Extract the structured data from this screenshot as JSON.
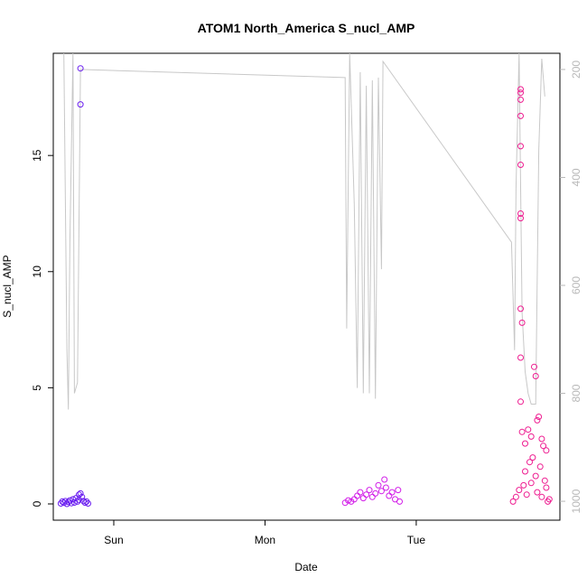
{
  "chart_data": {
    "type": "scatter",
    "title": "ATOM1 North_America S_nucl_AMP",
    "xlabel": "Date",
    "ylabel": "S_nucl_AMP",
    "x_ticks": [
      "Sun",
      "Mon",
      "Tue"
    ],
    "xlim": [
      -0.4,
      2.95
    ],
    "ylim": [
      -0.7,
      19.4
    ],
    "y_ticks": [
      0,
      5,
      10,
      15
    ],
    "y2_ticks": [
      200,
      400,
      600,
      800,
      1000
    ],
    "y2lim": [
      1035,
      170
    ],
    "grid": false,
    "legend": "none",
    "colors": {
      "axis": "#000000",
      "secondary_axis": "#b8b8b8",
      "line": "#c8c8c8",
      "points_early": "#6a1ef0",
      "points_mid": "#d21ee8",
      "points_late": "#ee1c90"
    },
    "series": [
      {
        "type": "scatter",
        "points": [
          {
            "x": -0.35,
            "y": 0.02
          },
          {
            "x": -0.34,
            "y": 0.1
          },
          {
            "x": -0.33,
            "y": 0.05
          },
          {
            "x": -0.32,
            "y": 0.12
          },
          {
            "x": -0.31,
            "y": 0.0
          },
          {
            "x": -0.3,
            "y": 0.08
          },
          {
            "x": -0.29,
            "y": 0.15
          },
          {
            "x": -0.28,
            "y": 0.03
          },
          {
            "x": -0.27,
            "y": 0.2
          },
          {
            "x": -0.26,
            "y": 0.06
          },
          {
            "x": -0.25,
            "y": 0.25
          },
          {
            "x": -0.24,
            "y": 0.1
          },
          {
            "x": -0.23,
            "y": 0.18
          },
          {
            "x": -0.22,
            "y": 0.45
          },
          {
            "x": -0.21,
            "y": 0.3
          },
          {
            "x": -0.2,
            "y": 0.12
          },
          {
            "x": -0.19,
            "y": 0.05
          },
          {
            "x": -0.18,
            "y": 0.1
          },
          {
            "x": -0.17,
            "y": 0.02
          },
          {
            "x": -0.23,
            "y": 0.4
          },
          {
            "x": -0.22,
            "y": 18.75
          },
          {
            "x": -0.22,
            "y": 17.2
          }
        ]
      },
      {
        "type": "scatter",
        "points": [
          {
            "x": 1.53,
            "y": 0.05
          },
          {
            "x": 1.55,
            "y": 0.15
          },
          {
            "x": 1.57,
            "y": 0.1
          },
          {
            "x": 1.59,
            "y": 0.2
          },
          {
            "x": 1.61,
            "y": 0.35
          },
          {
            "x": 1.63,
            "y": 0.5
          },
          {
            "x": 1.65,
            "y": 0.25
          },
          {
            "x": 1.67,
            "y": 0.4
          },
          {
            "x": 1.69,
            "y": 0.6
          },
          {
            "x": 1.71,
            "y": 0.3
          },
          {
            "x": 1.73,
            "y": 0.45
          },
          {
            "x": 1.75,
            "y": 0.8
          },
          {
            "x": 1.77,
            "y": 0.55
          },
          {
            "x": 1.79,
            "y": 1.05
          },
          {
            "x": 1.8,
            "y": 0.7
          },
          {
            "x": 1.82,
            "y": 0.35
          },
          {
            "x": 1.84,
            "y": 0.5
          },
          {
            "x": 1.86,
            "y": 0.2
          },
          {
            "x": 1.88,
            "y": 0.6
          },
          {
            "x": 1.89,
            "y": 0.1
          }
        ]
      },
      {
        "type": "scatter",
        "points": [
          {
            "x": 2.64,
            "y": 0.1
          },
          {
            "x": 2.66,
            "y": 0.3
          },
          {
            "x": 2.68,
            "y": 0.6
          },
          {
            "x": 2.69,
            "y": 17.85
          },
          {
            "x": 2.69,
            "y": 17.7
          },
          {
            "x": 2.69,
            "y": 17.4
          },
          {
            "x": 2.69,
            "y": 16.7
          },
          {
            "x": 2.69,
            "y": 15.4
          },
          {
            "x": 2.69,
            "y": 14.6
          },
          {
            "x": 2.69,
            "y": 12.5
          },
          {
            "x": 2.69,
            "y": 12.3
          },
          {
            "x": 2.69,
            "y": 8.4
          },
          {
            "x": 2.7,
            "y": 7.8
          },
          {
            "x": 2.69,
            "y": 6.3
          },
          {
            "x": 2.69,
            "y": 4.4
          },
          {
            "x": 2.7,
            "y": 3.1
          },
          {
            "x": 2.72,
            "y": 2.6
          },
          {
            "x": 2.74,
            "y": 3.2
          },
          {
            "x": 2.76,
            "y": 2.9
          },
          {
            "x": 2.78,
            "y": 5.9
          },
          {
            "x": 2.79,
            "y": 5.5
          },
          {
            "x": 2.8,
            "y": 3.6
          },
          {
            "x": 2.81,
            "y": 3.75
          },
          {
            "x": 2.83,
            "y": 2.8
          },
          {
            "x": 2.84,
            "y": 2.5
          },
          {
            "x": 2.86,
            "y": 2.3
          },
          {
            "x": 2.72,
            "y": 1.4
          },
          {
            "x": 2.75,
            "y": 1.8
          },
          {
            "x": 2.77,
            "y": 2.0
          },
          {
            "x": 2.79,
            "y": 1.2
          },
          {
            "x": 2.82,
            "y": 1.6
          },
          {
            "x": 2.85,
            "y": 1.0
          },
          {
            "x": 2.71,
            "y": 0.8
          },
          {
            "x": 2.73,
            "y": 0.4
          },
          {
            "x": 2.76,
            "y": 0.9
          },
          {
            "x": 2.8,
            "y": 0.5
          },
          {
            "x": 2.83,
            "y": 0.3
          },
          {
            "x": 2.86,
            "y": 0.7
          },
          {
            "x": 2.87,
            "y": 0.1
          },
          {
            "x": 2.88,
            "y": 0.2
          }
        ]
      },
      {
        "type": "line",
        "axis": "secondary",
        "points": [
          {
            "x": -0.33,
            "y": 170
          },
          {
            "x": -0.31,
            "y": 720
          },
          {
            "x": -0.3,
            "y": 830
          },
          {
            "x": -0.29,
            "y": 520
          },
          {
            "x": -0.27,
            "y": 170
          },
          {
            "x": -0.26,
            "y": 800
          },
          {
            "x": -0.24,
            "y": 780
          },
          {
            "x": -0.22,
            "y": 200
          },
          {
            "x": 1.53,
            "y": 215
          },
          {
            "x": 1.54,
            "y": 680
          },
          {
            "x": 1.56,
            "y": 170
          },
          {
            "x": 1.59,
            "y": 450
          },
          {
            "x": 1.61,
            "y": 790
          },
          {
            "x": 1.63,
            "y": 205
          },
          {
            "x": 1.65,
            "y": 800
          },
          {
            "x": 1.67,
            "y": 230
          },
          {
            "x": 1.69,
            "y": 800
          },
          {
            "x": 1.71,
            "y": 220
          },
          {
            "x": 1.73,
            "y": 810
          },
          {
            "x": 1.75,
            "y": 215
          },
          {
            "x": 1.77,
            "y": 570
          },
          {
            "x": 1.78,
            "y": 185
          },
          {
            "x": 2.63,
            "y": 520
          },
          {
            "x": 2.65,
            "y": 720
          },
          {
            "x": 2.66,
            "y": 420
          },
          {
            "x": 2.68,
            "y": 170
          },
          {
            "x": 2.7,
            "y": 650
          },
          {
            "x": 2.72,
            "y": 760
          },
          {
            "x": 2.74,
            "y": 800
          },
          {
            "x": 2.76,
            "y": 820
          },
          {
            "x": 2.79,
            "y": 820
          },
          {
            "x": 2.81,
            "y": 350
          },
          {
            "x": 2.83,
            "y": 180
          },
          {
            "x": 2.85,
            "y": 250
          }
        ]
      }
    ]
  }
}
